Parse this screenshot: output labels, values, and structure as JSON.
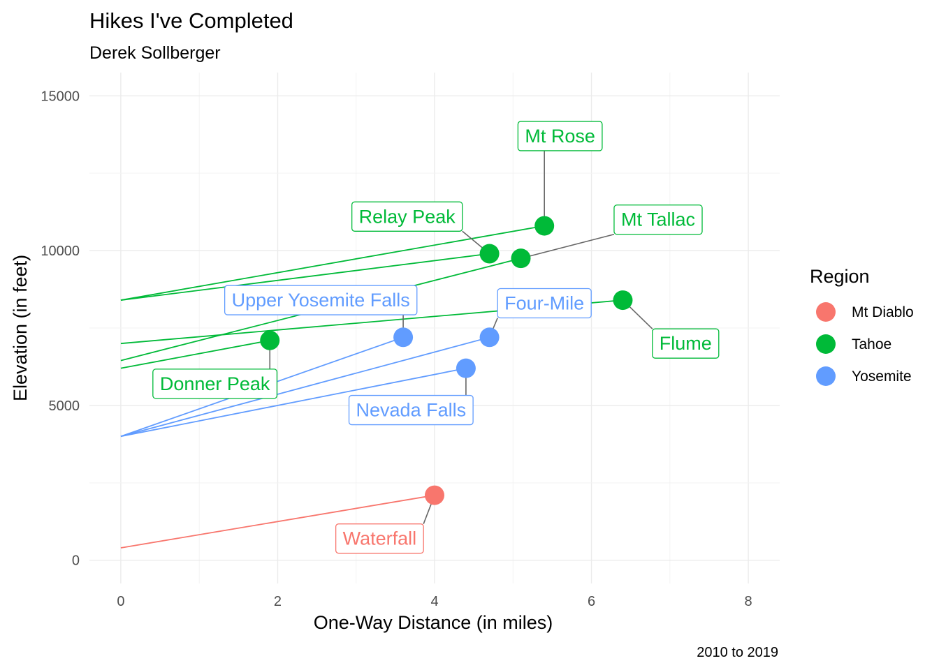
{
  "chart_data": {
    "type": "scatter",
    "title": "Hikes I've Completed",
    "subtitle": "Derek Sollberger",
    "caption": "2010 to 2019",
    "xlabel": "One-Way Distance (in miles)",
    "ylabel": "Elevation (in feet)",
    "xlim": [
      -0.4,
      8.4
    ],
    "ylim": [
      -750,
      15750
    ],
    "x_ticks": [
      0,
      2,
      4,
      6,
      8
    ],
    "y_ticks": [
      0,
      5000,
      10000,
      15000
    ],
    "grid": true,
    "legend": {
      "title": "Region",
      "placement": "right",
      "entries": [
        {
          "name": "Mt Diablo",
          "color": "#F8766D"
        },
        {
          "name": "Tahoe",
          "color": "#00BA38"
        },
        {
          "name": "Yosemite",
          "color": "#619CFF"
        }
      ]
    },
    "points": [
      {
        "label": "Waterfall",
        "region": "Mt Diablo",
        "x": 4.0,
        "y": 2100,
        "trailhead_elevation": 400,
        "label_at": [
          3.3,
          700
        ]
      },
      {
        "label": "Mt Rose",
        "region": "Tahoe",
        "x": 5.4,
        "y": 10800,
        "trailhead_elevation": 8400,
        "label_at": [
          5.6,
          13700
        ]
      },
      {
        "label": "Relay Peak",
        "region": "Tahoe",
        "x": 4.7,
        "y": 9900,
        "trailhead_elevation": 8400,
        "label_at": [
          3.65,
          11100
        ]
      },
      {
        "label": "Mt Tallac",
        "region": "Tahoe",
        "x": 5.1,
        "y": 9750,
        "trailhead_elevation": 6450,
        "label_at": [
          6.85,
          11000
        ]
      },
      {
        "label": "Flume",
        "region": "Tahoe",
        "x": 6.4,
        "y": 8400,
        "trailhead_elevation": 7000,
        "label_at": [
          7.2,
          7000
        ]
      },
      {
        "label": "Donner Peak",
        "region": "Tahoe",
        "x": 1.9,
        "y": 7100,
        "trailhead_elevation": 6200,
        "label_at": [
          1.2,
          5700
        ]
      },
      {
        "label": "Upper Yosemite Falls",
        "region": "Yosemite",
        "x": 3.6,
        "y": 7200,
        "trailhead_elevation": 4000,
        "label_at": [
          2.55,
          8400
        ]
      },
      {
        "label": "Four-Mile",
        "region": "Yosemite",
        "x": 4.7,
        "y": 7200,
        "trailhead_elevation": 4000,
        "label_at": [
          5.4,
          8300
        ]
      },
      {
        "label": "Nevada Falls",
        "region": "Yosemite",
        "x": 4.4,
        "y": 6200,
        "trailhead_elevation": 4000,
        "label_at": [
          3.7,
          4850
        ]
      }
    ]
  }
}
